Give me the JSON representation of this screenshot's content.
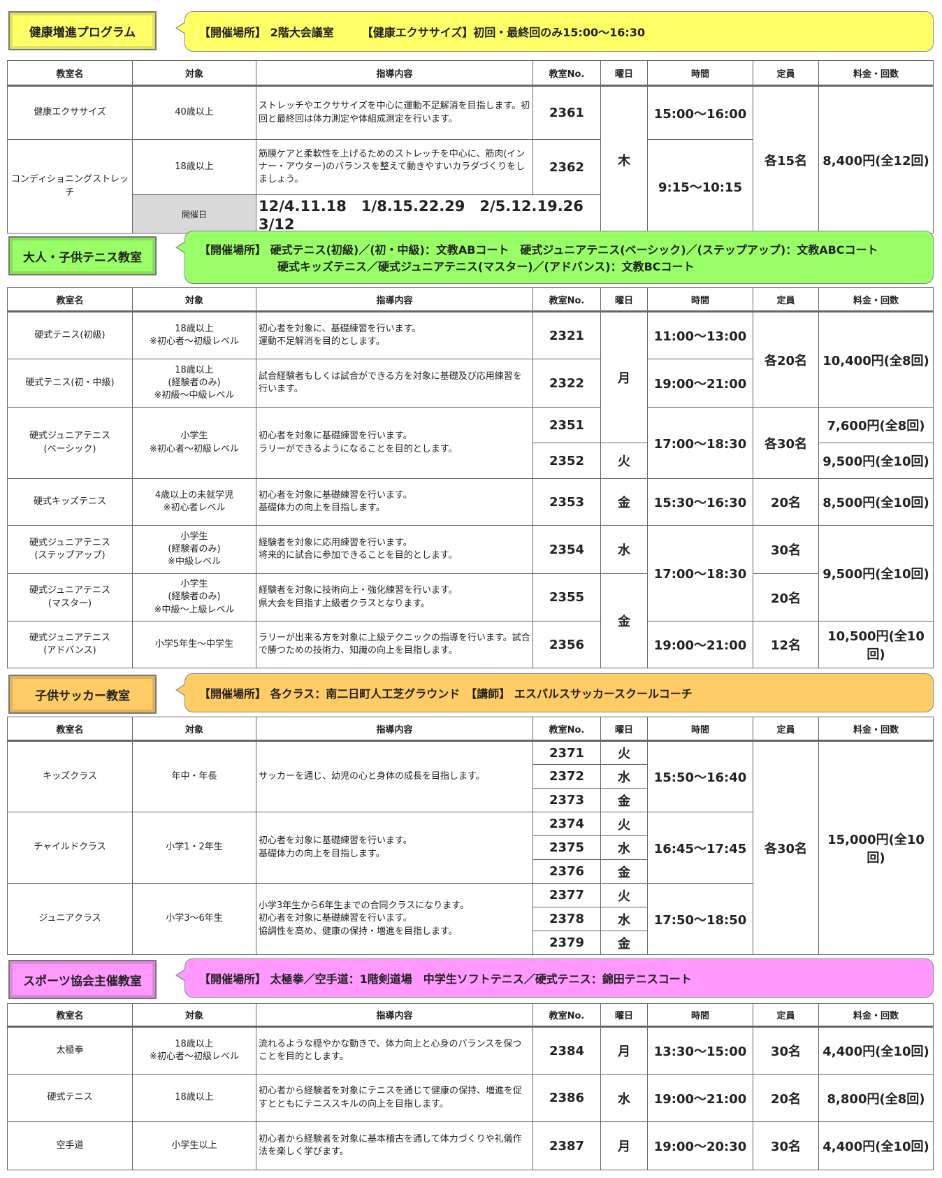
{
  "headers": [
    "教室名",
    "対象",
    "指導内容",
    "教室No.",
    "曜日",
    "時間",
    "定員",
    "料金・回数"
  ],
  "colors": {
    "yellow": "#ffff66",
    "green": "#99ff66",
    "orange": "#ffcc66",
    "pink": "#ff99ff"
  },
  "s1": {
    "title": "健康増進プログラム",
    "info": "【開催場所】 2階大会議室　　　【健康エクササイズ】初回・最終回のみ15:00～16:30",
    "rows": [
      {
        "name": "健康エクササイズ",
        "target": "40歳以上",
        "content": "ストレッチやエクササイズを中心に運動不足解消を目指します。初回と最終回は体力測定や体組成測定を行います。",
        "no": "2361",
        "day": "木",
        "time": "15:00～16:00",
        "cap": "各15名",
        "fee": "8,400円(全12回)"
      },
      {
        "name": "コンディショニングストレッチ",
        "target": "18歳以上",
        "content": "筋膜ケアと柔軟性を上げるためのストレッチを中心に、筋肉(インナー・アウター)のバランスを整えて動きやすいカラダづくりをしましょう。",
        "no": "2362",
        "time": "9:15～10:15"
      }
    ],
    "dates_label": "開催日",
    "dates": "12/4.11.18　1/8.15.22.29　2/5.12.19.26　3/12"
  },
  "s2": {
    "title": "大人・子供テニス教室",
    "info1": "【開催場所】 硬式テニス(初級)／(初・中級)：文教ABコート　硬式ジュニアテニス(ベーシック)／(ステップアップ)：文教ABCコート",
    "info2": "硬式キッズテニス／硬式ジュニアテニス(マスター)／(アドバンス)：文教BCコート",
    "rows": [
      {
        "name": "硬式テニス(初級)",
        "target": "18歳以上\n※初心者～初級レベル",
        "content": "初心者を対象に、基礎練習を行います。\n運動不足解消を目的とします。",
        "no": "2321",
        "day": "月",
        "time": "11:00～13:00",
        "cap": "各20名",
        "fee": "10,400円(全8回)"
      },
      {
        "name": "硬式テニス(初・中級)",
        "target": "18歳以上\n(経験者のみ)\n※初級～中級レベル",
        "content": "試合経験者もしくは試合ができる方を対象に基礎及び応用練習を行います。",
        "no": "2322",
        "time": "19:00～21:00"
      },
      {
        "name": "硬式ジュニアテニス\n(ベーシック)",
        "target": "小学生\n※初心者～初級レベル",
        "content": "初心者を対象に基礎練習を行います。\nラリーができるようになることを目的とします。",
        "no": "2351",
        "no2": "2352",
        "day2": "火",
        "time": "17:00～18:30",
        "cap": "各30名",
        "fee": "7,600円(全8回)",
        "fee2": "9,500円(全10回)"
      },
      {
        "name": "硬式キッズテニス",
        "target": "4歳以上の未就学児\n※初心者レベル",
        "content": "初心者を対象に基礎練習を行います。\n基礎体力の向上を目指します。",
        "no": "2353",
        "day": "金",
        "time": "15:30～16:30",
        "cap": "20名",
        "fee": "8,500円(全10回)"
      },
      {
        "name": "硬式ジュニアテニス\n(ステップアップ)",
        "target": "小学生\n(経験者のみ)\n※中級レベル",
        "content": "経験者を対象に応用練習を行います。\n将来的に試合に参加できることを目的とします。",
        "no": "2354",
        "day": "水",
        "time": "17:00～18:30",
        "cap": "30名",
        "fee": "9,500円(全10回)"
      },
      {
        "name": "硬式ジュニアテニス\n(マスター)",
        "target": "小学生\n(経験者のみ)\n※中級～上級レベル",
        "content": "経験者を対象に技術向上・強化練習を行います。\n県大会を目指す上級者クラスとなります。",
        "no": "2355",
        "day": "金",
        "cap": "20名"
      },
      {
        "name": "硬式ジュニアテニス\n(アドバンス)",
        "target": "小学5年生～中学生",
        "content": "ラリーが出来る方を対象に上級テクニックの指導を行います。試合で勝つための技術力、知識の向上を目指します。",
        "no": "2356",
        "time": "19:00～21:00",
        "cap": "12名",
        "fee": "10,500円(全10回)"
      }
    ]
  },
  "s3": {
    "title": "子供サッカー教室",
    "info": "【開催場所】 各クラス：南二日町人工芝グラウンド　【講師】 エスパルスサッカースクールコーチ",
    "cap": "各30名",
    "fee": "15,000円(全10回)",
    "rows": [
      {
        "name": "キッズクラス",
        "target": "年中・年長",
        "content": "サッカーを通じ、幼児の心と身体の成長を目指します。",
        "time": "15:50～16:40",
        "nos": [
          "2371",
          "2372",
          "2373"
        ],
        "days": [
          "火",
          "水",
          "金"
        ]
      },
      {
        "name": "チャイルドクラス",
        "target": "小学1・2年生",
        "content": "初心者を対象に基礎練習を行います。\n基礎体力の向上を目指します。",
        "time": "16:45～17:45",
        "nos": [
          "2374",
          "2375",
          "2376"
        ],
        "days": [
          "火",
          "水",
          "金"
        ]
      },
      {
        "name": "ジュニアクラス",
        "target": "小学3～6年生",
        "content": "小学3年生から6年生までの合同クラスになります。\n初心者を対象に基礎練習を行います。\n協調性を高め、健康の保持・増進を目指します。",
        "time": "17:50～18:50",
        "nos": [
          "2377",
          "2378",
          "2379"
        ],
        "days": [
          "火",
          "水",
          "金"
        ]
      }
    ]
  },
  "s4": {
    "title": "スポーツ協会主催教室",
    "info": "【開催場所】 太極拳／空手道：1階剣道場　中学生ソフトテニス／硬式テニス：錦田テニスコート",
    "rows": [
      {
        "name": "太極拳",
        "target": "18歳以上\n※初心者～初級レベル",
        "content": "流れるような穏やかな動きで、体力向上と心身のバランスを保つことを目的とします。",
        "no": "2384",
        "day": "月",
        "time": "13:30～15:00",
        "cap": "30名",
        "fee": "4,400円(全10回)"
      },
      {
        "name": "硬式テニス",
        "target": "18歳以上",
        "content": "初心者から経験者を対象にテニスを通じて健康の保持、増進を促すとともにテニススキルの向上を目指します。",
        "no": "2386",
        "day": "水",
        "time": "19:00～21:00",
        "cap": "20名",
        "fee": "8,800円(全8回)"
      },
      {
        "name": "空手道",
        "target": "小学生以上",
        "content": "初心者から経験者を対象に基本稽古を通して体力づくりや礼儀作法を楽しく学びます。",
        "no": "2387",
        "day": "月",
        "time": "19:00～20:30",
        "cap": "30名",
        "fee": "4,400円(全10回)"
      }
    ]
  }
}
